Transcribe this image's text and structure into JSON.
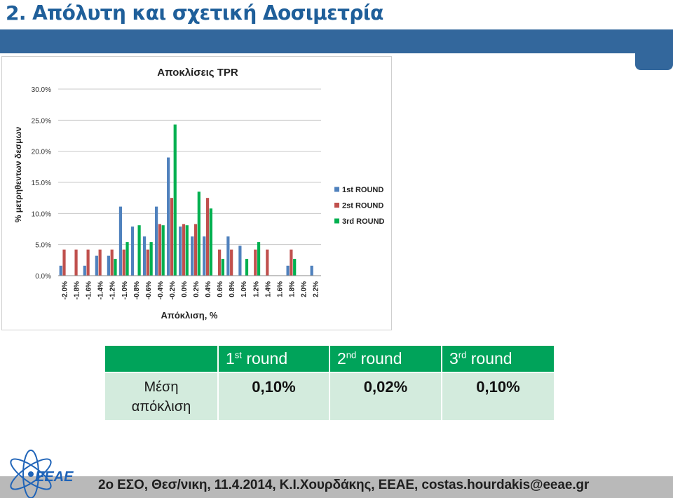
{
  "slide": {
    "title": "2. Απόλυτη και σχετική Δοσιμετρία"
  },
  "chart_data": {
    "type": "bar",
    "title": "Αποκλίσεις TPR",
    "xlabel": "Απόκλιση, %",
    "ylabel": "% μετρηθεντων δεσμων",
    "ylim": [
      0,
      30
    ],
    "yticks": [
      "0.0%",
      "5.0%",
      "10.0%",
      "15.0%",
      "20.0%",
      "25.0%",
      "30.0%"
    ],
    "grid": true,
    "legend_position": "right",
    "categories": [
      "-2.0%",
      "-1.8%",
      "-1.6%",
      "-1.4%",
      "-1.2%",
      "-1.0%",
      "-0.8%",
      "-0.6%",
      "-0.4%",
      "-0.2%",
      "0.0%",
      "0.2%",
      "0.4%",
      "0.6%",
      "0.8%",
      "1.0%",
      "1.2%",
      "1.4%",
      "1.6%",
      "1.8%",
      "2.0%",
      "2.2%"
    ],
    "series": [
      {
        "name": "1st ROUND",
        "color": "#4f81bd",
        "values": [
          1.6,
          0,
          1.6,
          3.2,
          3.2,
          11.1,
          7.9,
          6.3,
          11.1,
          19.0,
          7.9,
          6.3,
          6.3,
          0,
          6.3,
          4.8,
          0,
          0,
          0,
          1.6,
          0,
          1.6
        ]
      },
      {
        "name": "2st ROUND",
        "color": "#c0504d",
        "values": [
          4.2,
          4.2,
          4.2,
          4.2,
          4.2,
          4.2,
          0,
          4.2,
          8.3,
          12.5,
          8.3,
          8.3,
          12.5,
          4.2,
          4.2,
          0,
          4.2,
          4.2,
          0,
          4.2,
          0,
          0
        ]
      },
      {
        "name": "3rd ROUND",
        "color": "#00b050",
        "values": [
          0,
          0,
          0,
          0,
          2.7,
          5.4,
          8.1,
          5.4,
          8.1,
          24.3,
          8.1,
          13.5,
          10.8,
          2.7,
          0,
          2.7,
          5.4,
          0,
          0,
          2.7,
          0,
          0
        ]
      }
    ]
  },
  "table": {
    "headers": [
      {
        "num": "1",
        "sup": "st",
        "word": "round"
      },
      {
        "num": "2",
        "sup": "nd",
        "word": "round"
      },
      {
        "num": "3",
        "sup": "rd",
        "word": "round"
      }
    ],
    "row_label_line1": "Μέση",
    "row_label_line2": "απόκλιση",
    "values": [
      "0,10%",
      "0,02%",
      "0,10%"
    ]
  },
  "footer": {
    "logo_text": "ΕΕΑΕ",
    "text": "2ο ΕΣΟ, Θεσ/νικη,  11.4.2014,  Κ.Ι.Χουρδάκης, ΕΕΑΕ,  costas.hourdakis@eeae.gr"
  }
}
